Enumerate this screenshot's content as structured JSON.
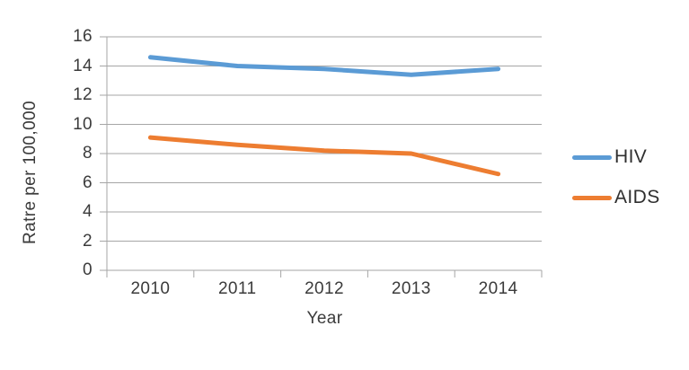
{
  "chart_data": {
    "type": "line",
    "title": "",
    "categories": [
      "2010",
      "2011",
      "2012",
      "2013",
      "2014"
    ],
    "series": [
      {
        "name": "HIV",
        "color": "#5B9BD5",
        "values": [
          14.6,
          14.0,
          13.8,
          13.4,
          13.8
        ]
      },
      {
        "name": "AIDS",
        "color": "#ED7D31",
        "values": [
          9.1,
          8.6,
          8.2,
          8.0,
          6.6
        ]
      }
    ],
    "xlabel": "Year",
    "ylabel": "Ratre per 100,000",
    "ylim": [
      0,
      16
    ],
    "ytick_step": 2,
    "ytick_labels": [
      "0",
      "2",
      "4",
      "6",
      "8",
      "10",
      "12",
      "14",
      "16"
    ],
    "grid": true,
    "legend_position": "right"
  },
  "colors": {
    "background": "#FFFFFF",
    "gridline": "#A6A6A6",
    "axis_text": "#3B3B3B"
  }
}
